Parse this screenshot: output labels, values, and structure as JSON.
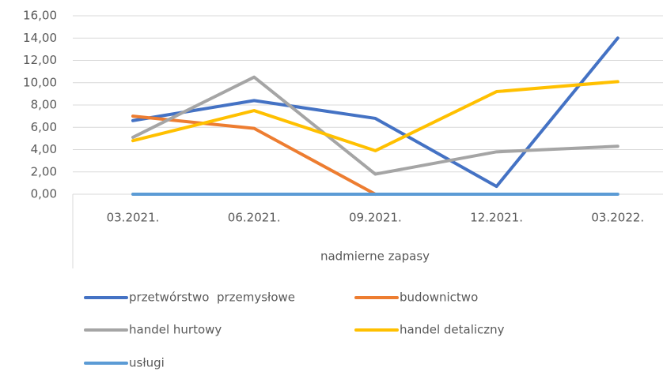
{
  "chart_data": {
    "type": "line",
    "x_label": "nadmierne zapasy",
    "categories": [
      "03.2021.",
      "06.2021.",
      "09.2021.",
      "12.2021.",
      "03.2022."
    ],
    "series": [
      {
        "name": "przetwórstwo  przemysłowe",
        "color": "#4472c4",
        "values": [
          6.6,
          8.4,
          6.8,
          0.7,
          14.0
        ]
      },
      {
        "name": "budownictwo",
        "color": "#ed7d31",
        "values": [
          7.0,
          5.9,
          0.0,
          null,
          null
        ]
      },
      {
        "name": "handel hurtowy",
        "color": "#a5a5a5",
        "values": [
          5.1,
          10.5,
          1.8,
          3.8,
          4.3
        ]
      },
      {
        "name": "handel detaliczny",
        "color": "#ffc000",
        "values": [
          4.8,
          7.5,
          3.9,
          9.2,
          10.1
        ]
      },
      {
        "name": "usługi",
        "color": "#5b9bd5",
        "values": [
          0,
          0,
          0,
          0,
          0
        ]
      }
    ],
    "ylim": [
      0,
      16
    ],
    "yticks": [
      {
        "value": 0,
        "label": "0,00"
      },
      {
        "value": 2,
        "label": "2,00"
      },
      {
        "value": 4,
        "label": "4,00"
      },
      {
        "value": 6,
        "label": "6,00"
      },
      {
        "value": 8,
        "label": "8,00"
      },
      {
        "value": 10,
        "label": "10,00"
      },
      {
        "value": 12,
        "label": "12,00"
      },
      {
        "value": 14,
        "label": "14,00"
      },
      {
        "value": 16,
        "label": "16,00"
      }
    ],
    "grid": true,
    "legend": "bottom"
  }
}
